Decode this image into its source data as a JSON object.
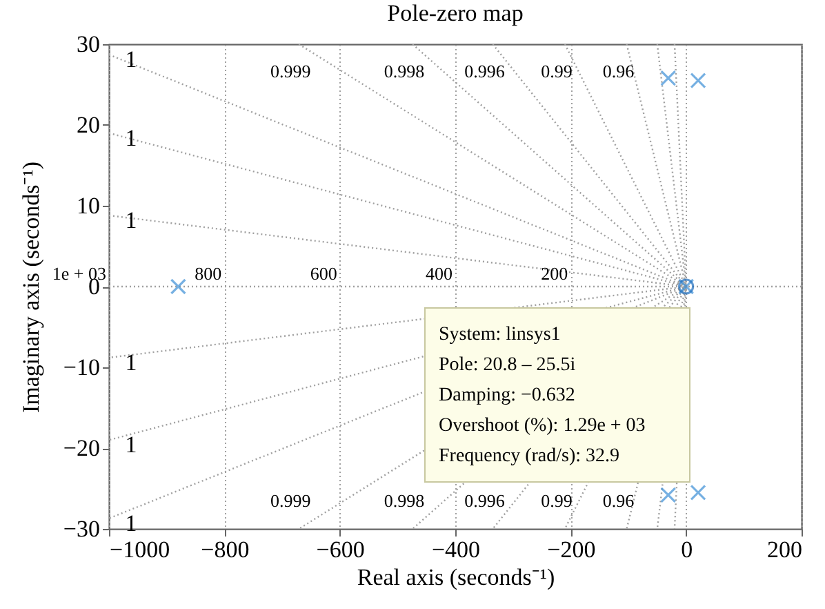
{
  "chart_data": {
    "type": "scatter",
    "title": "Pole-zero map",
    "xlabel": "Real axis (seconds⁻¹)",
    "ylabel": "Imaginary axis (seconds⁻¹)",
    "xlim": [
      -1000,
      200
    ],
    "xticks": [
      -1000,
      -800,
      -600,
      -400,
      -200,
      0,
      200
    ],
    "ylim": [
      -30,
      30
    ],
    "yticks": [
      -30,
      -20,
      -10,
      0,
      10,
      20,
      30
    ],
    "grid": "x",
    "ref_lines": [
      {
        "axis": "y",
        "value": 0,
        "color": "#a0a0a0",
        "line_style": "dotted"
      }
    ],
    "series": [
      {
        "type": "line",
        "name": "1",
        "color": "#a0a0a0",
        "line_style": "dotted",
        "x": [
          -1000,
          0,
          -1000
        ],
        "values": [
          28.7,
          0,
          -28.7
        ]
      },
      {
        "type": "line",
        "name": "1",
        "color": "#a0a0a0",
        "line_style": "dotted",
        "x": [
          -1000,
          0,
          -1000
        ],
        "values": [
          19,
          0,
          -19
        ]
      },
      {
        "type": "line",
        "name": "1",
        "color": "#a0a0a0",
        "line_style": "dotted",
        "x": [
          -1000,
          0,
          -1000
        ],
        "values": [
          8.8,
          0,
          -8.8
        ]
      },
      {
        "type": "line",
        "name": "0.999",
        "color": "#a0a0a0",
        "line_style": "dotted",
        "x": [
          -671,
          0,
          -671
        ],
        "values": [
          30,
          0,
          -30
        ]
      },
      {
        "type": "line",
        "name": "0.998",
        "color": "#a0a0a0",
        "line_style": "dotted",
        "x": [
          -474,
          0,
          -474
        ],
        "values": [
          30,
          0,
          -30
        ]
      },
      {
        "type": "line",
        "name": "0.996",
        "color": "#a0a0a0",
        "line_style": "dotted",
        "x": [
          -335,
          0,
          -335
        ],
        "values": [
          30,
          0,
          -30
        ]
      },
      {
        "type": "line",
        "name": "0.99",
        "color": "#a0a0a0",
        "line_style": "dotted",
        "x": [
          -210,
          0,
          -210
        ],
        "values": [
          30,
          0,
          -30
        ]
      },
      {
        "type": "line",
        "name": "0.96",
        "color": "#a0a0a0",
        "line_style": "dotted",
        "x": [
          -103,
          0,
          -103
        ],
        "values": [
          30,
          0,
          -30
        ]
      },
      {
        "type": "line",
        "color": "#a0a0a0",
        "line_style": "dotted",
        "x": [
          -50,
          0,
          -50
        ],
        "values": [
          30,
          0,
          -30
        ]
      },
      {
        "type": "line",
        "color": "#a0a0a0",
        "line_style": "dotted",
        "x": [
          -20,
          0,
          -20
        ],
        "values": [
          30,
          0,
          -30
        ]
      },
      {
        "type": "scatter",
        "marker": "cross",
        "color": "#3d8fd6",
        "x": [
          -880,
          -31,
          -31,
          20.8,
          20.8,
          0
        ],
        "values": [
          0,
          25.8,
          -25.8,
          25.5,
          -25.5,
          0
        ]
      },
      {
        "type": "scatter",
        "marker": "circle",
        "color": "#1f6fbf",
        "x": [
          0
        ],
        "values": [
          0
        ]
      }
    ],
    "annotations": [
      {
        "text": "1e + 03",
        "x": -1000,
        "y": 0
      },
      {
        "text": "800",
        "x": -800,
        "y": 0
      },
      {
        "text": "600",
        "x": -600,
        "y": 0
      },
      {
        "text": "400",
        "x": -400,
        "y": 0
      },
      {
        "text": "200",
        "x": -200,
        "y": 0
      },
      "System: linsys1",
      "Pole: 20.8 – 25.5i",
      "Damping: −0.632",
      "Overshoot (%): 1.29e + 03",
      "Frequency (rad/s): 32.9"
    ]
  }
}
